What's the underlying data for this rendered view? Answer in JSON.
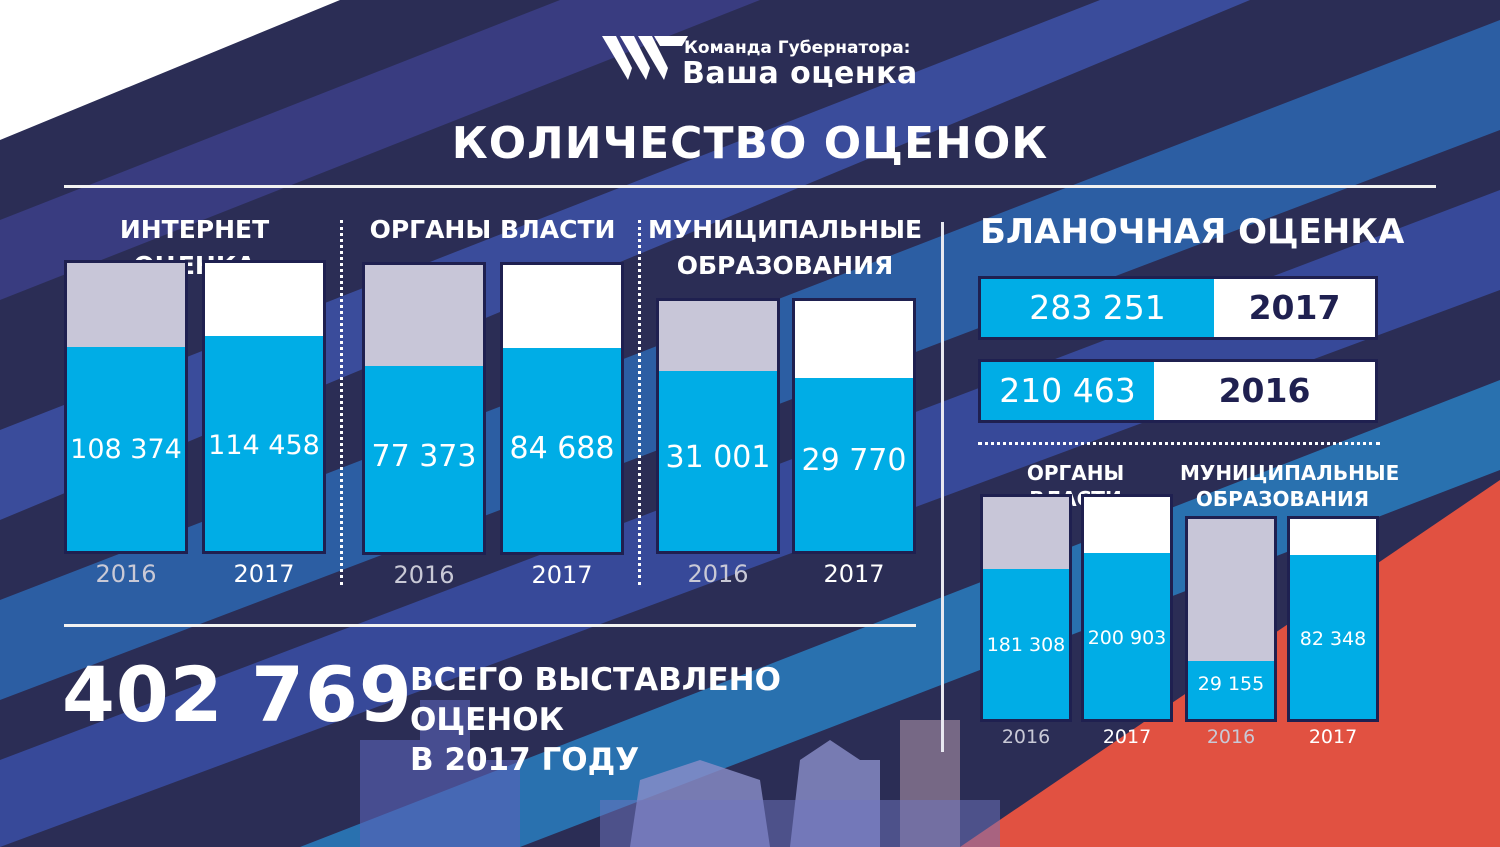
{
  "header": {
    "logo_small": "Команда Губернатора:",
    "logo_large": "Ваша оценка",
    "title": "КОЛИЧЕСТВО ОЦЕНОК"
  },
  "colors": {
    "bar_current": "#00ade6",
    "bar_previous_bg": "#c8c6d8",
    "bar_empty_bg": "#ffffff",
    "background": "#2b2d55",
    "accent_red": "#e15141"
  },
  "total": {
    "value": "402 769",
    "label_line1": "ВСЕГО ВЫСТАВЛЕНО ОЦЕНОК",
    "label_line2": "В 2017 ГОДУ"
  },
  "blank": {
    "title": "БЛАНОЧНАЯ ОЦЕНКА"
  },
  "chart_data": [
    {
      "type": "bar",
      "title": "ИНТЕРНЕТ ОЦЕНКА",
      "categories": [
        "2016",
        "2017"
      ],
      "values": [
        108374,
        114458
      ],
      "labels": [
        "108 374",
        "114 458"
      ]
    },
    {
      "type": "bar",
      "title": "ОРГАНЫ ВЛАСТИ",
      "categories": [
        "2016",
        "2017"
      ],
      "values": [
        77373,
        84688
      ],
      "labels": [
        "77 373",
        "84 688"
      ]
    },
    {
      "type": "bar",
      "title": "МУНИЦИПАЛЬНЫЕ ОБРАЗОВАНИЯ",
      "title_lines": [
        "МУНИЦИПАЛЬНЫЕ",
        "ОБРАЗОВАНИЯ"
      ],
      "categories": [
        "2016",
        "2017"
      ],
      "values": [
        31001,
        29770
      ],
      "labels": [
        "31 001",
        "29 770"
      ]
    },
    {
      "type": "bar",
      "orientation": "horizontal",
      "title": "БЛАНОЧНАЯ ОЦЕНКА",
      "categories": [
        "2017",
        "2016"
      ],
      "values": [
        283251,
        210463
      ],
      "labels": [
        "283 251",
        "210 463"
      ]
    },
    {
      "type": "bar",
      "title": "ОРГАНЫ ВЛАСТИ",
      "categories": [
        "2016",
        "2017"
      ],
      "values": [
        181308,
        200903
      ],
      "labels": [
        "181 308",
        "200 903"
      ]
    },
    {
      "type": "bar",
      "title": "МУНИЦИПАЛЬНЫЕ ОБРАЗОВАНИЯ",
      "title_lines": [
        "МУНИЦИПАЛЬНЫЕ",
        "ОБРАЗОВАНИЯ"
      ],
      "categories": [
        "2016",
        "2017"
      ],
      "values": [
        29155,
        82348
      ],
      "labels": [
        "29 155",
        "82 348"
      ]
    }
  ]
}
